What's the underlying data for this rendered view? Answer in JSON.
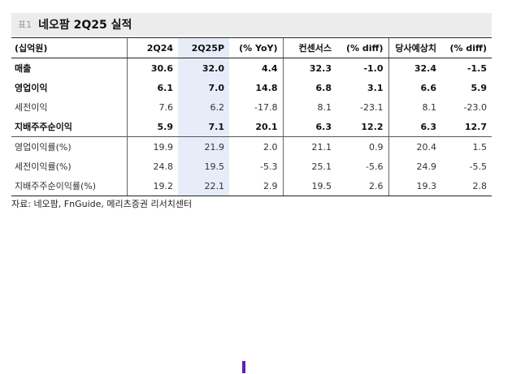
{
  "title": {
    "tag": "표1",
    "text": "네오팜 2Q25 실적"
  },
  "table": {
    "headers": [
      "(십억원)",
      "2Q24",
      "2Q25P",
      "(% YoY)",
      "컨센서스",
      "(% diff)",
      "당사예상치",
      "(% diff)"
    ],
    "rows": [
      [
        "매출",
        "30.6",
        "32.0",
        "4.4",
        "32.3",
        "-1.0",
        "32.4",
        "-1.5"
      ],
      [
        "영업이익",
        "6.1",
        "7.0",
        "14.8",
        "6.8",
        "3.1",
        "6.6",
        "5.9"
      ],
      [
        "세전이익",
        "7.6",
        "6.2",
        "-17.8",
        "8.1",
        "-23.1",
        "8.1",
        "-23.0"
      ],
      [
        "지배주주순이익",
        "5.9",
        "7.1",
        "20.1",
        "6.3",
        "12.2",
        "6.3",
        "12.7"
      ],
      [
        "영업이익률(%)",
        "19.9",
        "21.9",
        "2.0",
        "21.1",
        "0.9",
        "20.4",
        "1.5"
      ],
      [
        "세전이익률(%)",
        "24.8",
        "19.5",
        "-5.3",
        "25.1",
        "-5.6",
        "24.9",
        "-5.5"
      ],
      [
        "지배주주순이익률(%)",
        "19.2",
        "22.1",
        "2.9",
        "19.5",
        "2.6",
        "19.3",
        "2.8"
      ]
    ]
  },
  "source": "자료: 네오팜, FnGuide, 메리츠증권 리서치센터",
  "colors": {
    "highlight": "#e6edf8",
    "title_bg": "#ececec",
    "marker": "#6a1bb0"
  }
}
